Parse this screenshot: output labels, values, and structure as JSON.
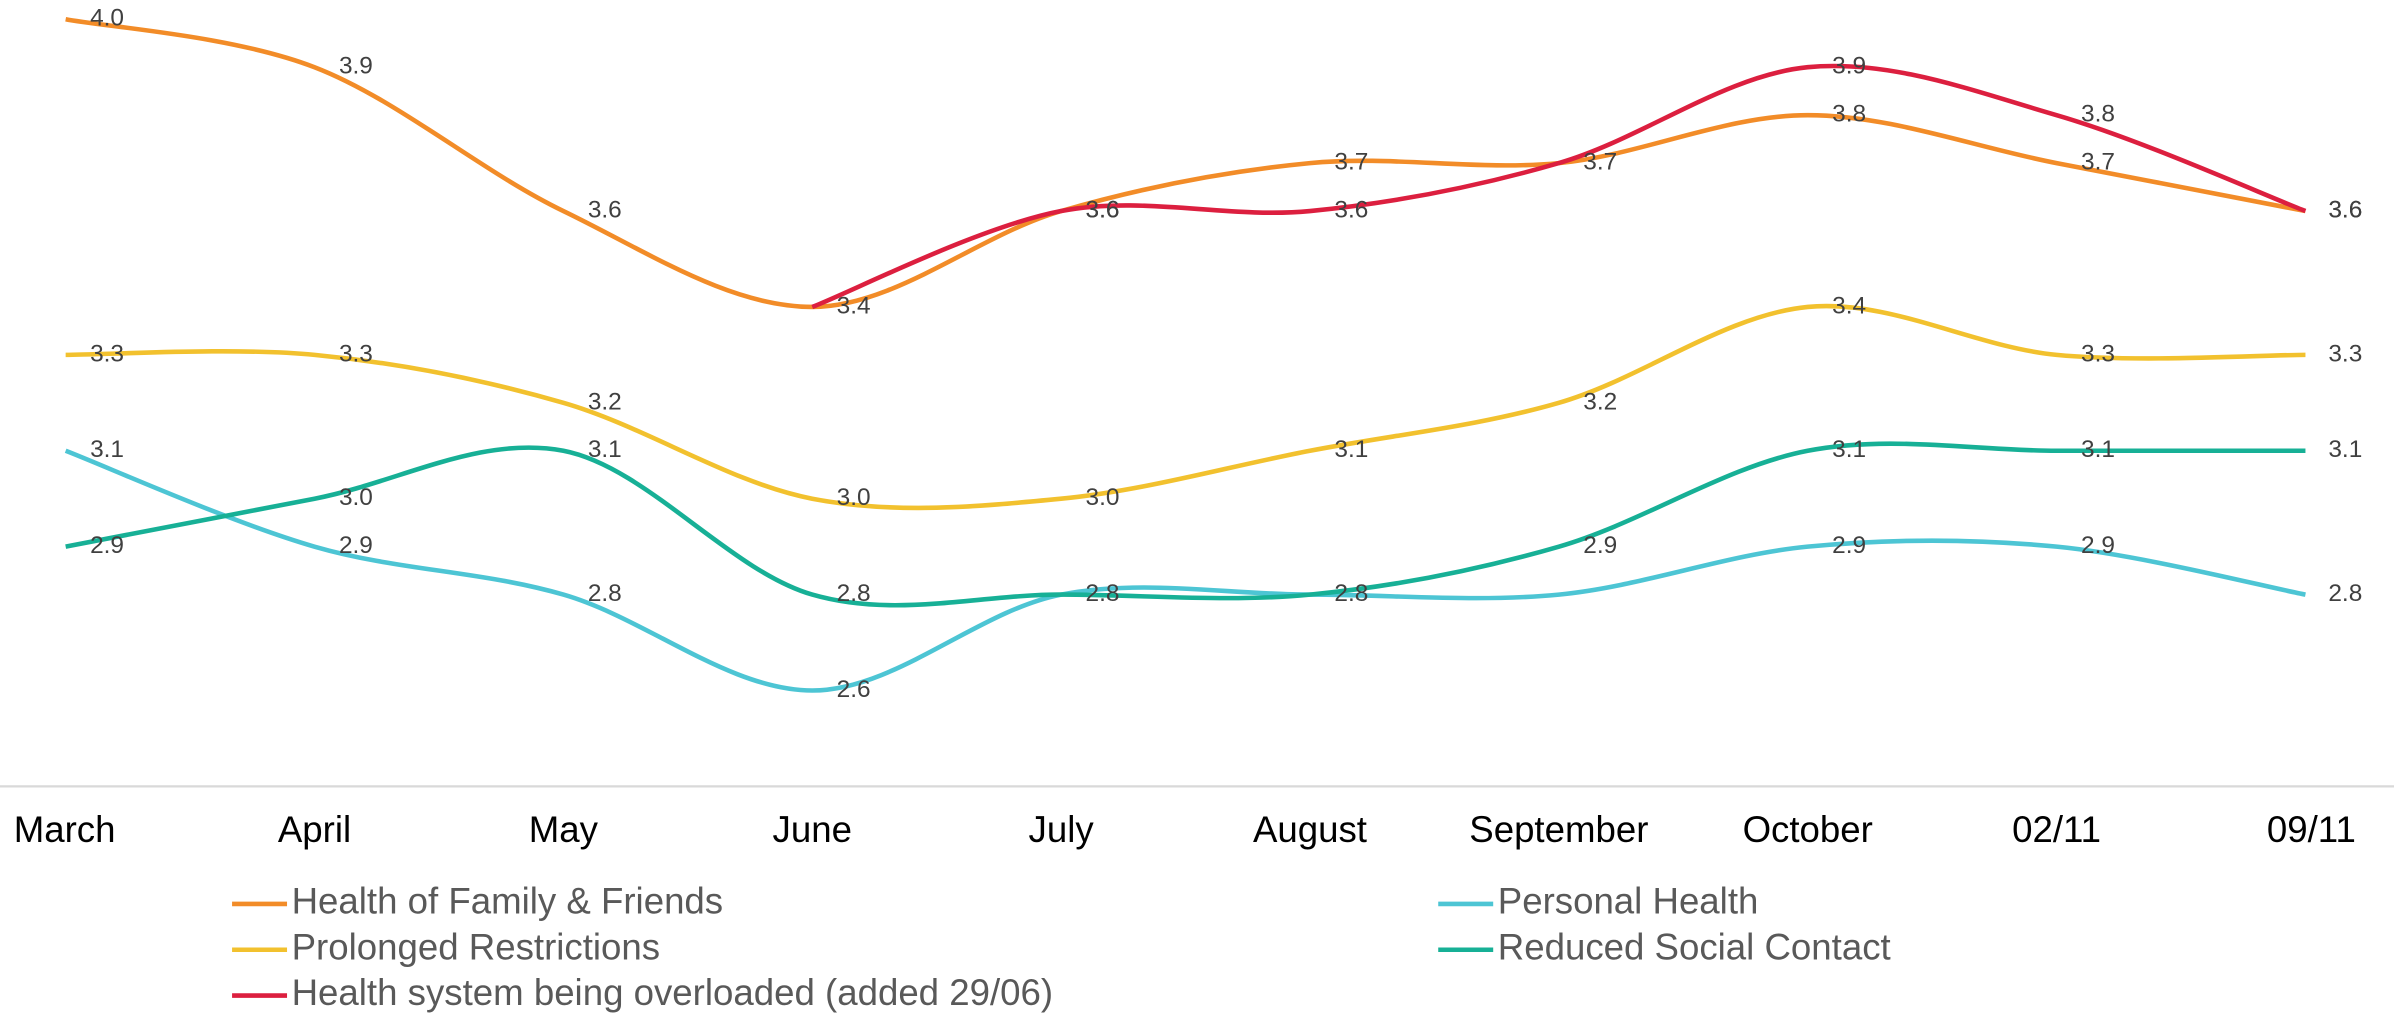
{
  "chart_data": {
    "type": "line",
    "categories": [
      "March",
      "April",
      "May",
      "June",
      "July",
      "August",
      "September",
      "October",
      "02/11",
      "09/11"
    ],
    "ylim": [
      2.4,
      4.04
    ],
    "series": [
      {
        "name": "Health of Family & Friends",
        "color": "#F28C28",
        "values": [
          4.0,
          3.9,
          3.6,
          3.4,
          3.6,
          3.7,
          3.7,
          3.8,
          3.7,
          3.6
        ],
        "value_labels": [
          "4.0",
          "3.9",
          "3.6",
          "3.4",
          "3.6",
          "3.7",
          "3.7",
          "3.8",
          "3.7",
          "3.6"
        ]
      },
      {
        "name": "Personal Health",
        "color": "#4DC5D4",
        "values": [
          3.1,
          2.9,
          2.8,
          2.6,
          2.8,
          2.8,
          2.8,
          2.9,
          2.9,
          2.8
        ],
        "value_labels": [
          "3.1",
          "2.9",
          "2.8",
          "2.6",
          "2.8",
          null,
          null,
          "2.9",
          "2.9",
          "2.8"
        ]
      },
      {
        "name": "Prolonged Restrictions",
        "color": "#F2C12E",
        "values": [
          3.3,
          3.3,
          3.2,
          3.0,
          3.0,
          3.1,
          3.2,
          3.4,
          3.3,
          3.3
        ],
        "value_labels": [
          "3.3",
          "3.3",
          "3.2",
          "3.0",
          "3.0",
          "3.1",
          "3.2",
          "3.4",
          "3.3",
          "3.3"
        ]
      },
      {
        "name": "Reduced Social Contact",
        "color": "#17B096",
        "values": [
          2.9,
          3.0,
          3.1,
          2.8,
          2.8,
          2.8,
          2.9,
          3.1,
          3.1,
          3.1
        ],
        "value_labels": [
          "2.9",
          "3.0",
          "3.1",
          "2.8",
          null,
          "2.8",
          "2.9",
          "3.1",
          "3.1",
          "3.1"
        ]
      },
      {
        "name": "Health system being overloaded (added 29/06)",
        "color": "#DC1F3F",
        "values": [
          null,
          null,
          null,
          3.4,
          3.6,
          3.6,
          3.7,
          3.9,
          3.8,
          3.6
        ],
        "value_labels": [
          null,
          null,
          null,
          null,
          "3.6",
          "3.6",
          null,
          "3.9",
          "3.8",
          "3.6"
        ]
      }
    ]
  }
}
